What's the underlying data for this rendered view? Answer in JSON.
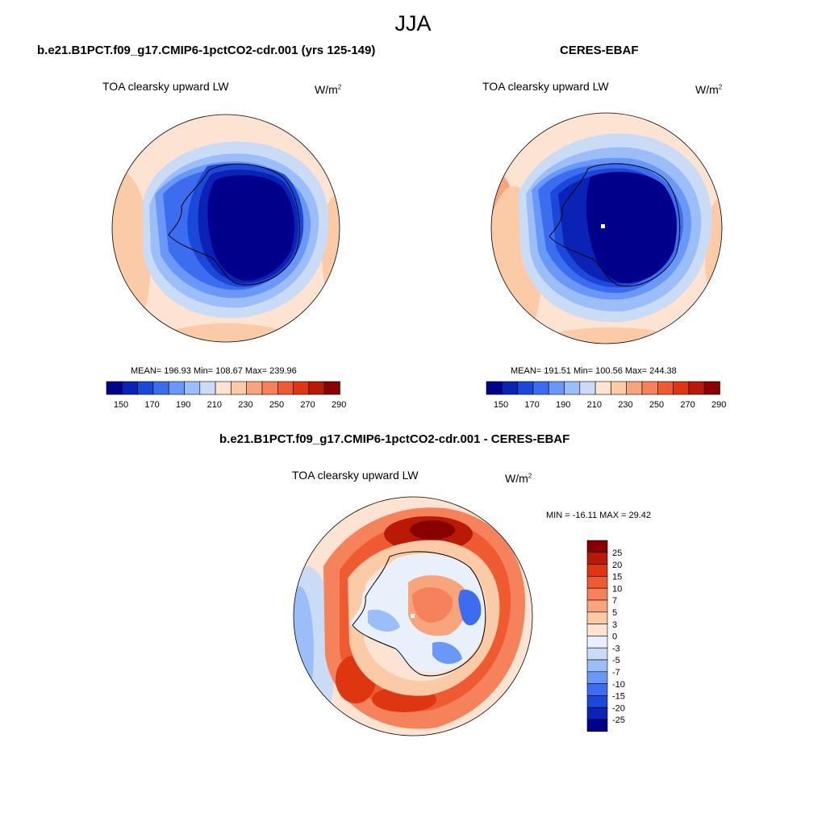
{
  "season": "JJA",
  "panels": [
    {
      "title": "b.e21.B1PCT.f09_g17.CMIP6-1pctCO2-cdr.001 (yrs 125-149)",
      "variable": "TOA clearsky upward LW",
      "units_base": "W/m",
      "units_exp": "2",
      "stats": "MEAN= 196.93  Min= 108.67  Max= 239.96",
      "mean": 196.93,
      "min": 108.67,
      "max": 239.96
    },
    {
      "title": "CERES-EBAF",
      "variable": "TOA clearsky upward LW",
      "units_base": "W/m",
      "units_exp": "2",
      "stats": "MEAN= 191.51  Min= 100.56  Max= 244.38",
      "mean": 191.51,
      "min": 100.56,
      "max": 244.38
    }
  ],
  "diff_panel": {
    "title": "b.e21.B1PCT.f09_g17.CMIP6-1pctCO2-cdr.001 - CERES-EBAF",
    "variable": "TOA clearsky upward LW",
    "units_base": "W/m",
    "units_exp": "2",
    "stats": "MIN = -16.11 MAX =  29.42",
    "min": -16.11,
    "max": 29.42
  },
  "colorbar_main": {
    "colors": [
      "#00008a",
      "#0a23b6",
      "#1a48d8",
      "#3c6cf0",
      "#6a98f8",
      "#9cbef8",
      "#cadcf5",
      "#fde3d2",
      "#fbcaa6",
      "#f8a57e",
      "#f5825a",
      "#ef5a30",
      "#df3612",
      "#b81a06",
      "#880000"
    ],
    "labels": [
      "150",
      "170",
      "190",
      "210",
      "230",
      "250",
      "270",
      "290"
    ]
  },
  "colorbar_diff": {
    "colors": [
      "#880000",
      "#b81a06",
      "#df3612",
      "#ef5a30",
      "#f5825a",
      "#f8a57e",
      "#fbcaa6",
      "#fde3d2",
      "#e8f0fb",
      "#cadcf5",
      "#9cbef8",
      "#6a98f8",
      "#3c6cf0",
      "#1a48d8",
      "#0a23b6",
      "#00008a"
    ],
    "labels": [
      "25",
      "20",
      "15",
      "10",
      "7",
      "5",
      "3",
      "0",
      "-3",
      "-5",
      "-7",
      "-10",
      "-15",
      "-20",
      "-25"
    ]
  }
}
